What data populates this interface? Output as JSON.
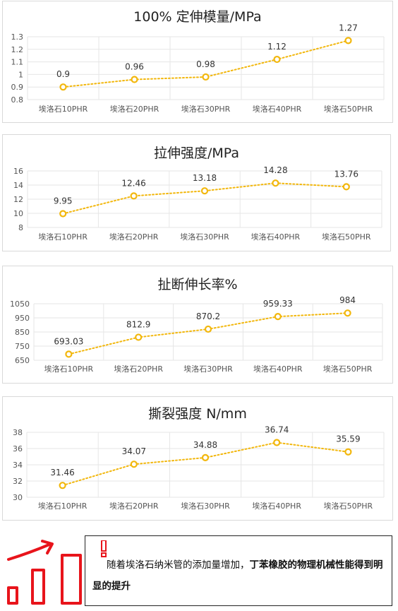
{
  "charts": [
    {
      "title": "100% 定伸模量/MPa",
      "chart_data": {
        "type": "line",
        "categories": [
          "埃洛石10PHR",
          "埃洛石20PHR",
          "埃洛石30PHR",
          "埃洛石40PHR",
          "埃洛石50PHR"
        ],
        "values": [
          0.9,
          0.96,
          0.98,
          1.12,
          1.27
        ],
        "labels": [
          "0.9",
          "0.96",
          "0.98",
          "1.12",
          "1.27"
        ],
        "yticks": [
          "0.8",
          "0.9",
          "1",
          "1.1",
          "1.2",
          "1.3"
        ],
        "ylim": [
          0.8,
          1.3
        ],
        "grid": true,
        "line_color": "#f2b70d"
      }
    },
    {
      "title": "拉伸强度/MPa",
      "chart_data": {
        "type": "line",
        "categories": [
          "埃洛石10PHR",
          "埃洛石20PHR",
          "埃洛石30PHR",
          "埃洛石40PHR",
          "埃洛石50PHR"
        ],
        "values": [
          9.95,
          12.46,
          13.18,
          14.28,
          13.76
        ],
        "labels": [
          "9.95",
          "12.46",
          "13.18",
          "14.28",
          "13.76"
        ],
        "yticks": [
          "8",
          "10",
          "12",
          "14",
          "16"
        ],
        "ylim": [
          8,
          16
        ],
        "grid": true,
        "line_color": "#f2b70d"
      }
    },
    {
      "title": "扯断伸长率%",
      "chart_data": {
        "type": "line",
        "categories": [
          "埃洛石10PHR",
          "埃洛石20PHR",
          "埃洛石30PHR",
          "埃洛石40PHR",
          "埃洛石50PHR"
        ],
        "values": [
          693.03,
          812.9,
          870.2,
          959.33,
          984
        ],
        "labels": [
          "693.03",
          "812.9",
          "870.2",
          "959.33",
          "984"
        ],
        "yticks": [
          "650",
          "750",
          "850",
          "950",
          "1050"
        ],
        "ylim": [
          650,
          1050
        ],
        "grid": true,
        "line_color": "#f2b70d"
      }
    },
    {
      "title": "撕裂强度 N/mm",
      "chart_data": {
        "type": "line",
        "categories": [
          "埃洛石10PHR",
          "埃洛石20PHR",
          "埃洛石30PHR",
          "埃洛石40PHR",
          "埃洛石50PHR"
        ],
        "values": [
          31.46,
          34.07,
          34.88,
          36.74,
          35.59
        ],
        "labels": [
          "31.46",
          "34.07",
          "34.88",
          "36.74",
          "35.59"
        ],
        "yticks": [
          "30",
          "32",
          "34",
          "36",
          "38"
        ],
        "ylim": [
          30,
          38
        ],
        "grid": true,
        "line_color": "#f2b70d"
      }
    }
  ],
  "note": {
    "text_normal": "随着埃洛石纳米管的添加量增加，",
    "text_bold": "丁苯橡胶的物理机械性能得到明显的提升",
    "accent_color": "#e8141b"
  }
}
